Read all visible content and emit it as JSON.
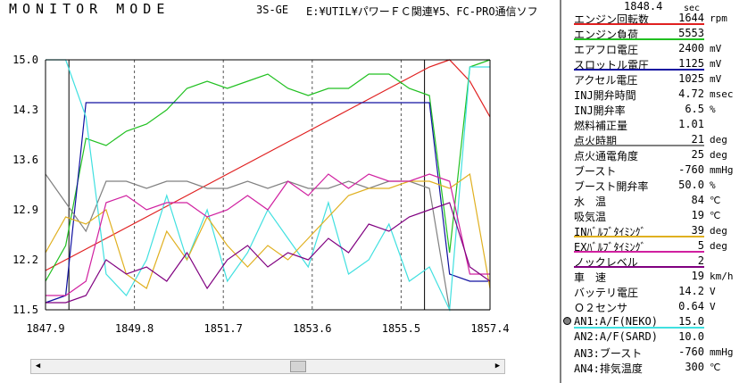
{
  "header": {
    "title": "MONITOR MODE",
    "car_code": "3S-GE",
    "file_path": "E:¥UTIL¥パワーＦＣ関連¥5、FC-PRO通信ソフ"
  },
  "time_readout": {
    "value": "1848.4",
    "unit": "sec"
  },
  "chart_data": {
    "type": "line",
    "y_ticks": [
      "15.0",
      "14.3",
      "13.6",
      "12.9",
      "12.2",
      "11.5"
    ],
    "x_ticks": [
      "1847.9",
      "1849.8",
      "1851.7",
      "1853.6",
      "1855.5",
      "1857.4"
    ],
    "ylim": [
      11.5,
      15.0
    ],
    "xlim": [
      1847.9,
      1857.4
    ],
    "grid": "vertical-dashed",
    "markers_x": [
      1848.4,
      1856.0
    ],
    "series": [
      {
        "color": "#e02020",
        "y": [
          12.05,
          12.2,
          12.35,
          12.5,
          12.65,
          12.8,
          12.95,
          13.1,
          13.25,
          13.4,
          13.55,
          13.7,
          13.85,
          14.0,
          14.15,
          14.3,
          14.45,
          14.6,
          14.75,
          14.9,
          15.0,
          14.7,
          14.2
        ]
      },
      {
        "color": "#20c020",
        "y": [
          11.9,
          12.4,
          13.9,
          13.8,
          14.0,
          14.1,
          14.3,
          14.6,
          14.7,
          14.6,
          14.7,
          14.8,
          14.6,
          14.5,
          14.6,
          14.6,
          14.8,
          14.8,
          14.6,
          14.5,
          12.3,
          14.9,
          15.0
        ]
      },
      {
        "color": "#1010a0",
        "y": [
          11.6,
          11.7,
          14.4,
          14.4,
          14.4,
          14.4,
          14.4,
          14.4,
          14.4,
          14.4,
          14.4,
          14.4,
          14.4,
          14.4,
          14.4,
          14.4,
          14.4,
          14.4,
          14.4,
          14.4,
          12.0,
          11.9,
          11.9
        ]
      },
      {
        "color": "#808080",
        "y": [
          13.4,
          13.0,
          12.6,
          13.3,
          13.3,
          13.2,
          13.3,
          13.3,
          13.2,
          13.2,
          13.3,
          13.2,
          13.3,
          13.2,
          13.2,
          13.3,
          13.2,
          13.3,
          13.3,
          13.2,
          11.5,
          11.5,
          11.5
        ]
      },
      {
        "color": "#40e0e0",
        "y": [
          15.0,
          15.0,
          14.2,
          12.0,
          11.7,
          12.2,
          13.1,
          12.2,
          12.9,
          11.9,
          12.3,
          12.9,
          12.5,
          12.1,
          13.0,
          12.0,
          12.2,
          12.7,
          11.9,
          12.1,
          11.5,
          14.9,
          14.9
        ]
      },
      {
        "color": "#e0b020",
        "y": [
          12.3,
          12.8,
          12.7,
          12.9,
          12.0,
          11.8,
          12.6,
          12.2,
          12.8,
          12.4,
          12.1,
          12.4,
          12.2,
          12.5,
          12.8,
          13.1,
          13.2,
          13.2,
          13.3,
          13.3,
          13.2,
          13.4,
          11.8
        ]
      },
      {
        "color": "#d020a0",
        "y": [
          11.7,
          11.7,
          11.9,
          13.0,
          13.1,
          12.9,
          13.0,
          13.0,
          12.8,
          12.9,
          13.1,
          12.9,
          13.3,
          13.1,
          13.4,
          13.2,
          13.4,
          13.3,
          13.3,
          13.4,
          13.3,
          12.0,
          12.0
        ]
      },
      {
        "color": "#800080",
        "y": [
          11.6,
          11.6,
          11.7,
          12.2,
          12.0,
          12.1,
          11.9,
          12.3,
          11.8,
          12.2,
          12.4,
          12.1,
          12.3,
          12.2,
          12.5,
          12.3,
          12.7,
          12.6,
          12.8,
          12.9,
          13.0,
          12.1,
          11.9
        ]
      }
    ]
  },
  "panel": {
    "rows": [
      {
        "label": "エンジン回転数",
        "value": "1644",
        "unit": "rpm",
        "line": "#e02020",
        "line_long": true
      },
      {
        "label": "エンジン負荷",
        "value": "5553",
        "unit": "",
        "line": "#20c020",
        "line_long": true
      },
      {
        "label": "エアフロ電圧",
        "value": "2400",
        "unit": "mV",
        "line": "",
        "line_long": false
      },
      {
        "label": "スロットル電圧",
        "value": "1125",
        "unit": "mV",
        "line": "#1010a0",
        "line_long": true
      },
      {
        "label": "アクセル電圧",
        "value": "1025",
        "unit": "mV",
        "line": "",
        "line_long": false
      },
      {
        "label": "INJ開弁時間",
        "value": "4.72",
        "unit": "msec",
        "line": "",
        "line_long": false
      },
      {
        "label": "INJ開弁率",
        "value": "6.5",
        "unit": "%",
        "line": "",
        "line_long": false
      },
      {
        "label": "燃料補正量",
        "value": "1.01",
        "unit": "",
        "line": "",
        "line_long": false
      },
      {
        "label": "点火時期",
        "value": "21",
        "unit": "deg",
        "line": "#808080",
        "line_long": true
      },
      {
        "label": "点火通電角度",
        "value": "25",
        "unit": "deg",
        "line": "",
        "line_long": false
      },
      {
        "label": "ブースト",
        "value": "-760",
        "unit": "mmHg",
        "line": "",
        "line_long": false
      },
      {
        "label": "ブースト開弁率",
        "value": "50.0",
        "unit": "%",
        "line": "",
        "line_long": false
      },
      {
        "label": "水　温",
        "value": "84",
        "unit": "℃",
        "line": "",
        "line_long": false
      },
      {
        "label": "吸気温",
        "value": "19",
        "unit": "℃",
        "line": "",
        "line_long": false
      },
      {
        "label": "INﾊﾞﾙﾌﾞﾀｲﾐﾝｸﾞ",
        "value": "39",
        "unit": "deg",
        "line": "#e0b020",
        "line_long": true
      },
      {
        "label": "EXﾊﾞﾙﾌﾞﾀｲﾐﾝｸﾞ",
        "value": "5",
        "unit": "deg",
        "line": "#d020a0",
        "line_long": true
      },
      {
        "label": "ノックレベル",
        "value": "2",
        "unit": "",
        "line": "#800080",
        "line_long": true
      },
      {
        "label": "車　速",
        "value": "19",
        "unit": "km/h",
        "line": "",
        "line_long": false
      },
      {
        "label": "バッテリ電圧",
        "value": "14.2",
        "unit": "V",
        "line": "",
        "line_long": false
      },
      {
        "label": "Ｏ２センサ",
        "value": "0.64",
        "unit": "V",
        "line": "",
        "line_long": false
      },
      {
        "label": "AN1:A/F(NEKO)",
        "value": "15.0",
        "unit": "",
        "line": "#40e0e0",
        "line_long": true
      },
      {
        "label": "AN2:A/F(SARD)",
        "value": "10.0",
        "unit": "",
        "line": "",
        "line_long": false
      },
      {
        "label": "AN3:ブースト",
        "value": "-760",
        "unit": "mmHg",
        "line": "",
        "line_long": false
      },
      {
        "label": "AN4:排気温度",
        "value": "300",
        "unit": "℃",
        "line": "",
        "line_long": false
      }
    ]
  },
  "scrollbar": {
    "left_icon": "scroll-left-arrow",
    "right_icon": "scroll-right-arrow"
  }
}
